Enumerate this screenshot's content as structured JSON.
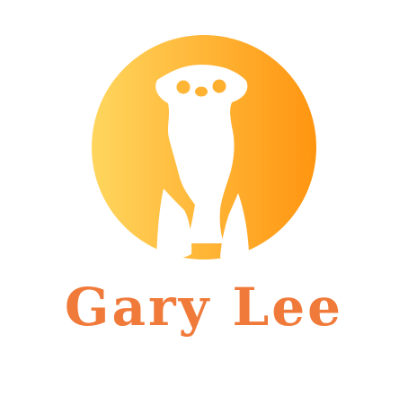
{
  "logo": {
    "wordmark": "Gary Lee",
    "emblem_icon": "meerkat-icon",
    "colors": {
      "text": "#F07A3A",
      "circle_left": "#FFD65E",
      "circle_right": "#FF9510",
      "silhouette": "#FFFFFF",
      "background": "#FFFFFF"
    }
  }
}
